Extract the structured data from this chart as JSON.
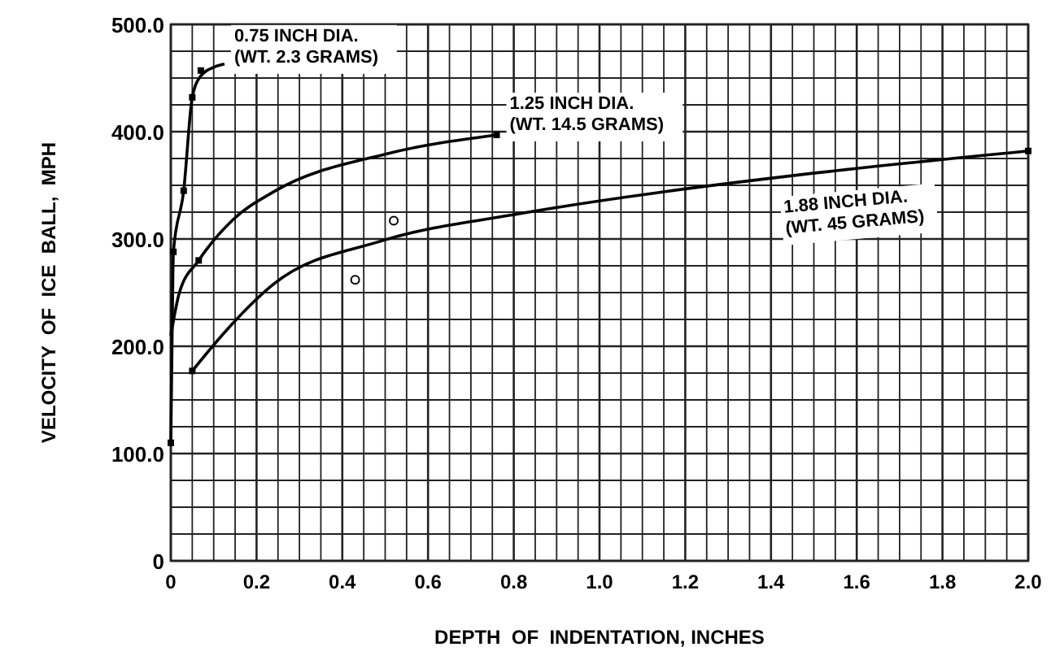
{
  "chart_data": {
    "type": "line",
    "xlabel": "DEPTH  OF  INDENTATION, INCHES",
    "ylabel": "VELOCITY  OF  ICE  BALL,  MPH",
    "xlim": [
      0,
      2.0
    ],
    "ylim": [
      0,
      500
    ],
    "xticks": [
      {
        "value": 0,
        "label": "0"
      },
      {
        "value": 0.2,
        "label": "0.2"
      },
      {
        "value": 0.4,
        "label": "0.4"
      },
      {
        "value": 0.6,
        "label": "0.6"
      },
      {
        "value": 0.8,
        "label": "0.8"
      },
      {
        "value": 1.0,
        "label": "1.0"
      },
      {
        "value": 1.2,
        "label": "1.2"
      },
      {
        "value": 1.4,
        "label": "1.4"
      },
      {
        "value": 1.6,
        "label": "1.6"
      },
      {
        "value": 1.8,
        "label": "1.8"
      },
      {
        "value": 2.0,
        "label": "2.0"
      }
    ],
    "yticks": [
      {
        "value": 0,
        "label": "0"
      },
      {
        "value": 100,
        "label": "100.0"
      },
      {
        "value": 200,
        "label": "200.0"
      },
      {
        "value": 300,
        "label": "300.0"
      },
      {
        "value": 400,
        "label": "400.0"
      },
      {
        "value": 500,
        "label": "500.0"
      }
    ],
    "grid": true,
    "marker": "none",
    "line_style": "solid",
    "series": [
      {
        "name": "0.75 INCH DIA. (WT. 2.3 GRAMS)",
        "color": "#000000",
        "x": [
          0,
          0.003,
          0.006,
          0.03,
          0.05,
          0.07,
          0.1,
          0.125
        ],
        "values": [
          110,
          210,
          288,
          345,
          432,
          452,
          460,
          463
        ]
      },
      {
        "name": "1.25 INCH DIA. (WT. 14.5 GRAMS)",
        "color": "#000000",
        "x": [
          0,
          0.02,
          0.065,
          0.145,
          0.24,
          0.5,
          0.76
        ],
        "values": [
          210,
          250,
          280,
          318,
          344,
          379,
          397
        ]
      },
      {
        "name": "1.88 INCH DIA. (WT. 45 GRAMS)",
        "color": "#000000",
        "x": [
          0.05,
          0.13,
          0.24,
          0.49,
          0.82,
          1.15,
          1.45,
          2.0
        ],
        "values": [
          177,
          215,
          258,
          298,
          324,
          344,
          359,
          382
        ]
      },
      {
        "type": "scatter",
        "marker": "square",
        "color": "#000000",
        "x": [
          0,
          0.006,
          0.03,
          0.05,
          0.07,
          0.065,
          0.05,
          0.76,
          2.0
        ],
        "values": [
          110,
          288,
          345,
          432,
          457,
          280,
          177,
          397,
          382
        ]
      },
      {
        "type": "scatter",
        "marker": "circle",
        "color": "#000000",
        "x": [
          0.43,
          0.52
        ],
        "values": [
          262,
          317
        ]
      }
    ]
  }
}
